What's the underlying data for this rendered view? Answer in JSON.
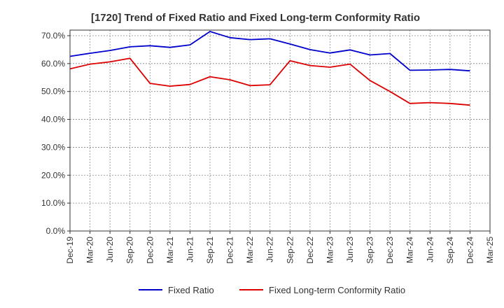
{
  "chart_data": {
    "type": "line",
    "title": "[1720]  Trend of Fixed Ratio and Fixed Long-term Conformity Ratio",
    "xlabel": "",
    "ylabel": "",
    "x": [
      "Dec-19",
      "Mar-20",
      "Jun-20",
      "Sep-20",
      "Dec-20",
      "Mar-21",
      "Jun-21",
      "Sep-21",
      "Dec-21",
      "Mar-22",
      "Jun-22",
      "Sep-22",
      "Dec-22",
      "Mar-23",
      "Jun-23",
      "Sep-23",
      "Dec-23",
      "Mar-24",
      "Jun-24",
      "Sep-24",
      "Dec-24",
      "Mar-25"
    ],
    "series": [
      {
        "name": "Fixed Ratio",
        "color": "#0000cc",
        "values": [
          62.6,
          63.7,
          64.7,
          66.0,
          66.4,
          65.8,
          66.7,
          71.5,
          69.3,
          68.6,
          68.9,
          67.0,
          65.0,
          63.8,
          64.9,
          63.1,
          63.6,
          57.6,
          57.7,
          57.9,
          57.4,
          null
        ]
      },
      {
        "name": "Fixed Long-term Conformity Ratio",
        "color": "#dd0000",
        "values": [
          58.1,
          59.8,
          60.6,
          61.9,
          52.9,
          51.9,
          52.5,
          55.3,
          54.2,
          52.1,
          52.4,
          61.0,
          59.3,
          58.7,
          59.8,
          53.9,
          50.0,
          45.7,
          46.0,
          45.7,
          45.1,
          null
        ]
      }
    ],
    "y_ticks": [
      "0.0%",
      "10.0%",
      "20.0%",
      "30.0%",
      "40.0%",
      "50.0%",
      "60.0%",
      "70.0%"
    ],
    "ylim": [
      0,
      72
    ],
    "grid": true,
    "legend": "bottom"
  }
}
